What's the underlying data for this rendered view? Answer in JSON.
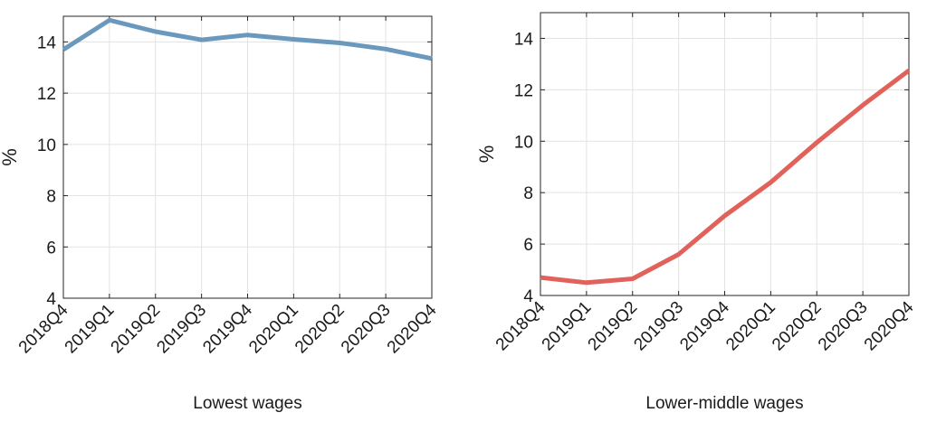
{
  "chart_data": [
    {
      "type": "line",
      "title": "",
      "xlabel": "Lowest wages",
      "ylabel": "%",
      "categories": [
        "2018Q4",
        "2019Q1",
        "2019Q2",
        "2019Q3",
        "2019Q4",
        "2020Q1",
        "2020Q2",
        "2020Q3",
        "2020Q4"
      ],
      "series": [
        {
          "values": [
            13.7,
            14.85,
            14.4,
            14.08,
            14.27,
            14.1,
            13.96,
            13.72,
            13.35
          ],
          "color": "#6b98bd"
        }
      ],
      "ylim": [
        4,
        15
      ],
      "yticks": [
        4,
        6,
        8,
        10,
        12,
        14
      ],
      "grid": true
    },
    {
      "type": "line",
      "title": "",
      "xlabel": "Lower-middle wages",
      "ylabel": "%",
      "categories": [
        "2018Q4",
        "2019Q1",
        "2019Q2",
        "2019Q3",
        "2019Q4",
        "2020Q1",
        "2020Q2",
        "2020Q3",
        "2020Q4"
      ],
      "series": [
        {
          "values": [
            4.7,
            4.5,
            4.65,
            5.6,
            7.1,
            8.4,
            9.95,
            11.4,
            12.75
          ],
          "color": "#e0625a"
        }
      ],
      "ylim": [
        4,
        15
      ],
      "yticks": [
        4,
        6,
        8,
        10,
        12,
        14
      ],
      "grid": true
    }
  ]
}
